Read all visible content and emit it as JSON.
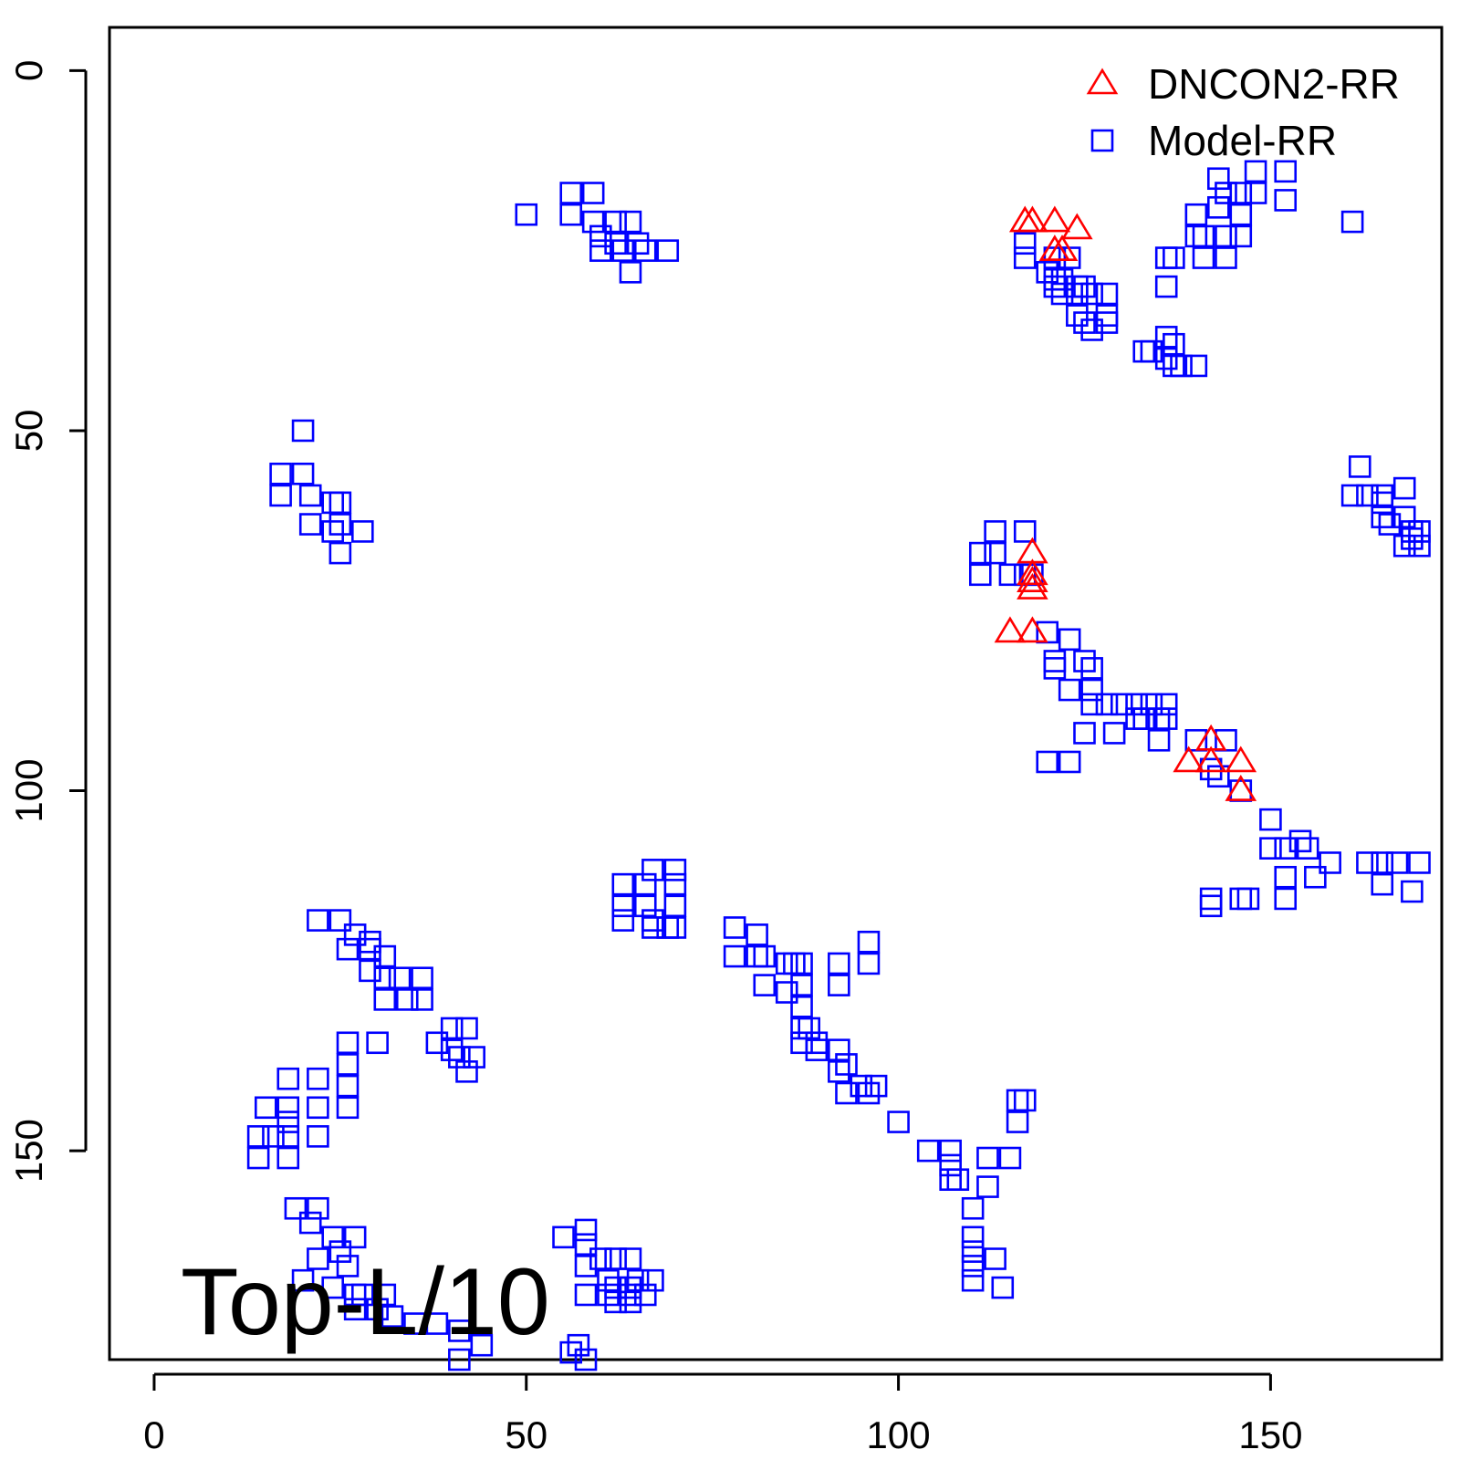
{
  "chart_data": {
    "type": "scatter",
    "title": "",
    "xlabel": "",
    "ylabel": "",
    "annotation": "Top-L/10",
    "xlim": [
      -6,
      173
    ],
    "ylim": [
      -6,
      179
    ],
    "y_reversed": true,
    "x_ticks": [
      0,
      50,
      100,
      150
    ],
    "y_ticks": [
      0,
      50,
      100,
      150
    ],
    "grid": false,
    "legend_position": "top-right",
    "series": [
      {
        "name": "DNCON2-RR",
        "marker": "triangle",
        "color": "#ff0000",
        "points": [
          [
            117,
            21
          ],
          [
            118,
            21
          ],
          [
            121,
            21
          ],
          [
            124,
            22
          ],
          [
            121,
            25
          ],
          [
            122,
            25
          ],
          [
            118,
            67
          ],
          [
            118,
            70
          ],
          [
            118,
            71
          ],
          [
            118,
            72
          ],
          [
            115,
            78
          ],
          [
            118,
            78
          ],
          [
            139,
            96
          ],
          [
            142,
            93
          ],
          [
            142,
            96
          ],
          [
            146,
            96
          ],
          [
            146,
            100
          ]
        ]
      },
      {
        "name": "Model-RR",
        "marker": "square",
        "color": "#0000ff",
        "points": [
          [
            50,
            20
          ],
          [
            56,
            17
          ],
          [
            59,
            17
          ],
          [
            56,
            20
          ],
          [
            59,
            21
          ],
          [
            62,
            21
          ],
          [
            64,
            21
          ],
          [
            60,
            23
          ],
          [
            62,
            24
          ],
          [
            65,
            24
          ],
          [
            60,
            25
          ],
          [
            63,
            25
          ],
          [
            66,
            25
          ],
          [
            69,
            25
          ],
          [
            64,
            28
          ],
          [
            20,
            50
          ],
          [
            17,
            56
          ],
          [
            20,
            56
          ],
          [
            17,
            59
          ],
          [
            21,
            59
          ],
          [
            24,
            60
          ],
          [
            25,
            60
          ],
          [
            21,
            63
          ],
          [
            25,
            63
          ],
          [
            24,
            64
          ],
          [
            28,
            64
          ],
          [
            25,
            67
          ],
          [
            117,
            24
          ],
          [
            117,
            26
          ],
          [
            121,
            26
          ],
          [
            123,
            26
          ],
          [
            120,
            28
          ],
          [
            121,
            29
          ],
          [
            122,
            29
          ],
          [
            124,
            30
          ],
          [
            125,
            30
          ],
          [
            121,
            30
          ],
          [
            122,
            31
          ],
          [
            126,
            31
          ],
          [
            128,
            31
          ],
          [
            124,
            31
          ],
          [
            124,
            34
          ],
          [
            128,
            34
          ],
          [
            125,
            35
          ],
          [
            128,
            35
          ],
          [
            126,
            36
          ],
          [
            137,
            26
          ],
          [
            136,
            26
          ],
          [
            141,
            26
          ],
          [
            144,
            26
          ],
          [
            140,
            23
          ],
          [
            141,
            23
          ],
          [
            144,
            23
          ],
          [
            146,
            23
          ],
          [
            140,
            20
          ],
          [
            143,
            19
          ],
          [
            146,
            20
          ],
          [
            144,
            17
          ],
          [
            146,
            17
          ],
          [
            148,
            17
          ],
          [
            148,
            14
          ],
          [
            152,
            14
          ],
          [
            152,
            18
          ],
          [
            143,
            15
          ],
          [
            161,
            21
          ],
          [
            136,
            30
          ],
          [
            133,
            39
          ],
          [
            134,
            39
          ],
          [
            136,
            40
          ],
          [
            137,
            41
          ],
          [
            138,
            41
          ],
          [
            140,
            41
          ],
          [
            136,
            37
          ],
          [
            137,
            38
          ],
          [
            162,
            55
          ],
          [
            161,
            59
          ],
          [
            163,
            59
          ],
          [
            165,
            59
          ],
          [
            165,
            60
          ],
          [
            168,
            58
          ],
          [
            165,
            62
          ],
          [
            166,
            63
          ],
          [
            168,
            62
          ],
          [
            169,
            64
          ],
          [
            170,
            64
          ],
          [
            168,
            66
          ],
          [
            169,
            65
          ],
          [
            170,
            66
          ],
          [
            111,
            67
          ],
          [
            113,
            64
          ],
          [
            117,
            64
          ],
          [
            113,
            67
          ],
          [
            115,
            70
          ],
          [
            111,
            70
          ],
          [
            117,
            70
          ],
          [
            118,
            70
          ],
          [
            120,
            78
          ],
          [
            123,
            79
          ],
          [
            121,
            82
          ],
          [
            125,
            82
          ],
          [
            121,
            83
          ],
          [
            126,
            83
          ],
          [
            126,
            86
          ],
          [
            123,
            86
          ],
          [
            126,
            88
          ],
          [
            128,
            88
          ],
          [
            130,
            88
          ],
          [
            132,
            88
          ],
          [
            134,
            88
          ],
          [
            136,
            88
          ],
          [
            132,
            90
          ],
          [
            133,
            90
          ],
          [
            135,
            90
          ],
          [
            136,
            90
          ],
          [
            135,
            93
          ],
          [
            140,
            93
          ],
          [
            144,
            93
          ],
          [
            125,
            92
          ],
          [
            129,
            92
          ],
          [
            120,
            96
          ],
          [
            123,
            96
          ],
          [
            142,
            97
          ],
          [
            143,
            98
          ],
          [
            146,
            100
          ],
          [
            150,
            104
          ],
          [
            150,
            108
          ],
          [
            152,
            108
          ],
          [
            155,
            108
          ],
          [
            154,
            107
          ],
          [
            152,
            112
          ],
          [
            156,
            112
          ],
          [
            152,
            115
          ],
          [
            147,
            115
          ],
          [
            146,
            115
          ],
          [
            142,
            116
          ],
          [
            158,
            110
          ],
          [
            163,
            110
          ],
          [
            165,
            110
          ],
          [
            167,
            110
          ],
          [
            170,
            110
          ],
          [
            169,
            114
          ],
          [
            165,
            113
          ],
          [
            142,
            115
          ],
          [
            19,
            158
          ],
          [
            22,
            158
          ],
          [
            24,
            162
          ],
          [
            27,
            162
          ],
          [
            25,
            164
          ],
          [
            22,
            165
          ],
          [
            26,
            166
          ],
          [
            20,
            168
          ],
          [
            24,
            169
          ],
          [
            27,
            170
          ],
          [
            28,
            170
          ],
          [
            31,
            170
          ],
          [
            27,
            172
          ],
          [
            30,
            172
          ],
          [
            32,
            173
          ],
          [
            35,
            174
          ],
          [
            38,
            174
          ],
          [
            41,
            175
          ],
          [
            44,
            177
          ],
          [
            41,
            179
          ],
          [
            57,
            177
          ],
          [
            56,
            178
          ],
          [
            58,
            179
          ],
          [
            22,
            118
          ],
          [
            25,
            118
          ],
          [
            27,
            120
          ],
          [
            29,
            121
          ],
          [
            29,
            122
          ],
          [
            26,
            122
          ],
          [
            31,
            123
          ],
          [
            29,
            125
          ],
          [
            31,
            126
          ],
          [
            33,
            126
          ],
          [
            36,
            126
          ],
          [
            31,
            129
          ],
          [
            34,
            129
          ],
          [
            36,
            129
          ],
          [
            26,
            135
          ],
          [
            30,
            135
          ],
          [
            26,
            138
          ],
          [
            26,
            141
          ],
          [
            22,
            140
          ],
          [
            18,
            140
          ],
          [
            26,
            144
          ],
          [
            22,
            144
          ],
          [
            15,
            144
          ],
          [
            18,
            144
          ],
          [
            18,
            146
          ],
          [
            22,
            148
          ],
          [
            18,
            148
          ],
          [
            14,
            148
          ],
          [
            16,
            148
          ],
          [
            14,
            151
          ],
          [
            18,
            151
          ],
          [
            21,
            160
          ],
          [
            38,
            135
          ],
          [
            40,
            133
          ],
          [
            42,
            133
          ],
          [
            40,
            136
          ],
          [
            43,
            137
          ],
          [
            41,
            137
          ],
          [
            42,
            139
          ],
          [
            63,
            113
          ],
          [
            63,
            116
          ],
          [
            63,
            118
          ],
          [
            66,
            113
          ],
          [
            66,
            116
          ],
          [
            67,
            118
          ],
          [
            67,
            119
          ],
          [
            69,
            119
          ],
          [
            70,
            119
          ],
          [
            70,
            116
          ],
          [
            70,
            113
          ],
          [
            67,
            111
          ],
          [
            70,
            111
          ],
          [
            78,
            119
          ],
          [
            78,
            123
          ],
          [
            81,
            120
          ],
          [
            81,
            123
          ],
          [
            82,
            123
          ],
          [
            82,
            127
          ],
          [
            85,
            124
          ],
          [
            86,
            124
          ],
          [
            87,
            124
          ],
          [
            85,
            128
          ],
          [
            87,
            127
          ],
          [
            87,
            130
          ],
          [
            87,
            133
          ],
          [
            87,
            135
          ],
          [
            88,
            133
          ],
          [
            89,
            135
          ],
          [
            89,
            136
          ],
          [
            92,
            124
          ],
          [
            92,
            127
          ],
          [
            96,
            121
          ],
          [
            96,
            124
          ],
          [
            92,
            136
          ],
          [
            93,
            138
          ],
          [
            92,
            139
          ],
          [
            95,
            141
          ],
          [
            97,
            141
          ],
          [
            93,
            142
          ],
          [
            96,
            142
          ],
          [
            100,
            146
          ],
          [
            104,
            150
          ],
          [
            107,
            150
          ],
          [
            107,
            152
          ],
          [
            107,
            154
          ],
          [
            108,
            154
          ],
          [
            110,
            158
          ],
          [
            112,
            155
          ],
          [
            112,
            151
          ],
          [
            115,
            151
          ],
          [
            116,
            146
          ],
          [
            116,
            143
          ],
          [
            117,
            143
          ],
          [
            110,
            162
          ],
          [
            110,
            164
          ],
          [
            110,
            166
          ],
          [
            110,
            168
          ],
          [
            113,
            165
          ],
          [
            114,
            169
          ],
          [
            55,
            162
          ],
          [
            58,
            161
          ],
          [
            58,
            163
          ],
          [
            58,
            166
          ],
          [
            60,
            165
          ],
          [
            62,
            165
          ],
          [
            64,
            165
          ],
          [
            61,
            168
          ],
          [
            62,
            169
          ],
          [
            64,
            169
          ],
          [
            65,
            168
          ],
          [
            67,
            168
          ],
          [
            58,
            170
          ],
          [
            61,
            170
          ],
          [
            64,
            170
          ],
          [
            66,
            170
          ],
          [
            62,
            171
          ],
          [
            64,
            171
          ]
        ]
      }
    ]
  }
}
